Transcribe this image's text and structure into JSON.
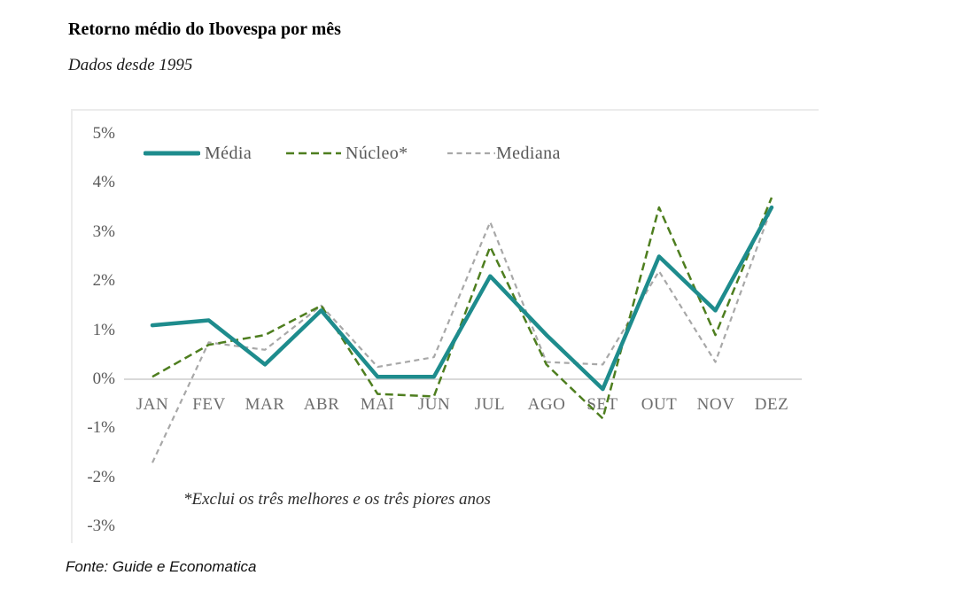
{
  "chart_data": {
    "type": "line",
    "title": "Retorno médio do Ibovespa por mês",
    "subtitle": "Dados desde 1995",
    "xlabel": "",
    "ylabel": "",
    "ylim": [
      -3,
      5
    ],
    "grid": "zero-line-only",
    "legend_position": "top",
    "categories": [
      "JAN",
      "FEV",
      "MAR",
      "ABR",
      "MAI",
      "JUN",
      "JUL",
      "AGO",
      "SET",
      "OUT",
      "NOV",
      "DEZ"
    ],
    "yticks": [
      "5%",
      "4%",
      "3%",
      "2%",
      "1%",
      "0%",
      "-1%",
      "-2%",
      "-3%"
    ],
    "series": [
      {
        "name": "Média",
        "color": "#1e8c8d",
        "style": "solid",
        "values": [
          1.1,
          1.2,
          0.3,
          1.4,
          0.05,
          0.05,
          2.1,
          0.9,
          -0.2,
          2.5,
          1.4,
          3.5
        ]
      },
      {
        "name": "Núcleo*",
        "color": "#4e7e1f",
        "style": "dashed",
        "values": [
          0.05,
          0.7,
          0.9,
          1.5,
          -0.3,
          -0.35,
          2.7,
          0.3,
          -0.8,
          3.5,
          0.9,
          3.7
        ]
      },
      {
        "name": "Mediana",
        "color": "#a8a8a8",
        "style": "dashed",
        "values": [
          -1.7,
          0.75,
          0.6,
          1.5,
          0.25,
          0.45,
          3.2,
          0.35,
          0.3,
          2.2,
          0.35,
          3.5
        ]
      }
    ],
    "footnote": "*Exclui os três melhores e os três piores anos",
    "source": "Fonte: Guide e Economatica"
  }
}
